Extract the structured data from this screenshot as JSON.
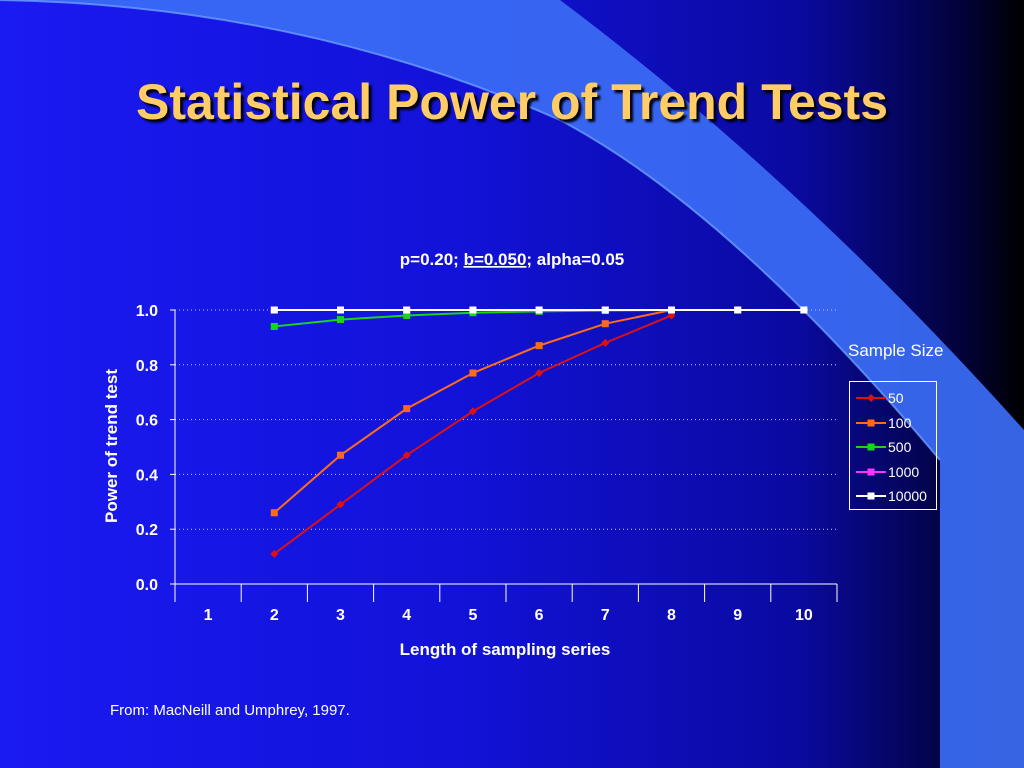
{
  "slide": {
    "title": "Statistical Power of Trend Tests",
    "source": "From: MacNeill and Umphrey, 1997."
  },
  "chart_data": {
    "type": "line",
    "subtitle_parts": [
      {
        "text": "p=0.20; ",
        "underline": false
      },
      {
        "text": "b=0.050",
        "underline": true
      },
      {
        "text": "; alpha=0.05",
        "underline": false
      }
    ],
    "xlabel": "Length of sampling series",
    "ylabel": "Power of trend test",
    "categories": [
      "1",
      "2",
      "3",
      "4",
      "5",
      "6",
      "7",
      "8",
      "9",
      "10"
    ],
    "ylim": [
      0,
      1
    ],
    "yticks": [
      "0.0",
      "0.2",
      "0.4",
      "0.6",
      "0.8",
      "1.0"
    ],
    "grid": "horizontal dotted",
    "legend_title": "Sample Size",
    "legend_position": "right",
    "series": [
      {
        "name": "50",
        "color": "#dd1111",
        "marker": "diamond",
        "values": [
          null,
          0.11,
          0.29,
          0.47,
          0.63,
          0.77,
          0.88,
          0.98,
          null,
          null
        ]
      },
      {
        "name": "100",
        "color": "#ff6a1a",
        "marker": "square",
        "values": [
          null,
          0.26,
          0.47,
          0.64,
          0.77,
          0.87,
          0.95,
          1.0,
          null,
          null
        ]
      },
      {
        "name": "500",
        "color": "#19d419",
        "marker": "square",
        "values": [
          null,
          0.94,
          0.965,
          0.98,
          0.99,
          0.995,
          0.998,
          1.0,
          1.0,
          1.0
        ]
      },
      {
        "name": "1000",
        "color": "#ff33ff",
        "marker": "square",
        "values": [
          null,
          1.0,
          1.0,
          1.0,
          1.0,
          1.0,
          1.0,
          1.0,
          1.0,
          1.0
        ]
      },
      {
        "name": "10000",
        "color": "#ffffff",
        "marker": "square",
        "values": [
          null,
          1.0,
          1.0,
          1.0,
          1.0,
          1.0,
          1.0,
          1.0,
          1.0,
          1.0
        ]
      }
    ]
  }
}
